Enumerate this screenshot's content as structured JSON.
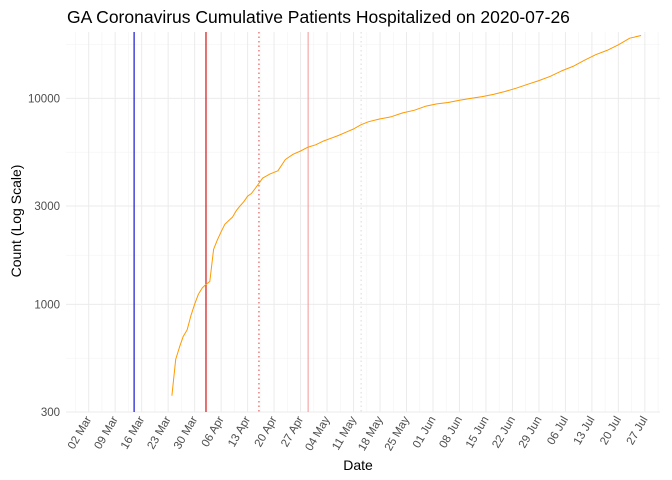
{
  "chart_data": {
    "type": "line",
    "title": "GA Coronavirus Cumulative Patients Hospitalized on 2020-07-26",
    "xlabel": "Date",
    "ylabel": "Count (Log Scale)",
    "y_scale": "log10",
    "ylim": [
      300,
      21000
    ],
    "xlim": [
      "2020-02-25",
      "2020-07-31"
    ],
    "grid": true,
    "y_ticks": [
      300,
      1000,
      3000,
      10000
    ],
    "y_tick_labels": [
      "300",
      "1000",
      "3000",
      "10000"
    ],
    "x_ticks": [
      "2020-03-02",
      "2020-03-09",
      "2020-03-16",
      "2020-03-23",
      "2020-03-30",
      "2020-04-06",
      "2020-04-13",
      "2020-04-20",
      "2020-04-27",
      "2020-05-04",
      "2020-05-11",
      "2020-05-18",
      "2020-05-25",
      "2020-06-01",
      "2020-06-08",
      "2020-06-15",
      "2020-06-22",
      "2020-06-29",
      "2020-07-06",
      "2020-07-13",
      "2020-07-20",
      "2020-07-27"
    ],
    "x_tick_labels": [
      "02 Mar",
      "09 Mar",
      "16 Mar",
      "23 Mar",
      "30 Mar",
      "06 Apr",
      "13 Apr",
      "20 Apr",
      "27 Apr",
      "04 May",
      "11 May",
      "18 May",
      "25 May",
      "01 Jun",
      "08 Jun",
      "15 Jun",
      "22 Jun",
      "29 Jun",
      "06 Jul",
      "13 Jul",
      "20 Jul",
      "27 Jul"
    ],
    "vlines": [
      {
        "x": "2020-03-14",
        "color": "#0000cc",
        "style": "solid"
      },
      {
        "x": "2020-04-02",
        "color": "#cc0000",
        "style": "solid"
      },
      {
        "x": "2020-04-16",
        "color": "#e05050",
        "style": "dotted"
      },
      {
        "x": "2020-04-29",
        "color": "#f4a0a0",
        "style": "solid"
      },
      {
        "x": "2020-05-13",
        "color": "#dddddd",
        "style": "dotted"
      }
    ],
    "series": [
      {
        "color": "#ff9900",
        "x": [
          "2020-03-24",
          "2020-03-25",
          "2020-03-26",
          "2020-03-27",
          "2020-03-28",
          "2020-03-29",
          "2020-03-30",
          "2020-03-31",
          "2020-04-01",
          "2020-04-02",
          "2020-04-03",
          "2020-04-04",
          "2020-04-05",
          "2020-04-06",
          "2020-04-07",
          "2020-04-08",
          "2020-04-09",
          "2020-04-10",
          "2020-04-11",
          "2020-04-12",
          "2020-04-13",
          "2020-04-14",
          "2020-04-15",
          "2020-04-17",
          "2020-04-19",
          "2020-04-21",
          "2020-04-23",
          "2020-04-25",
          "2020-04-27",
          "2020-04-29",
          "2020-05-01",
          "2020-05-03",
          "2020-05-05",
          "2020-05-07",
          "2020-05-09",
          "2020-05-11",
          "2020-05-13",
          "2020-05-15",
          "2020-05-18",
          "2020-05-21",
          "2020-05-24",
          "2020-05-27",
          "2020-05-30",
          "2020-06-02",
          "2020-06-05",
          "2020-06-08",
          "2020-06-11",
          "2020-06-14",
          "2020-06-17",
          "2020-06-20",
          "2020-06-23",
          "2020-06-26",
          "2020-06-29",
          "2020-07-02",
          "2020-07-05",
          "2020-07-08",
          "2020-07-11",
          "2020-07-14",
          "2020-07-17",
          "2020-07-20",
          "2020-07-23",
          "2020-07-26"
        ],
        "y": [
          360,
          540,
          620,
          700,
          750,
          880,
          1000,
          1120,
          1200,
          1250,
          1290,
          1850,
          2050,
          2250,
          2450,
          2550,
          2650,
          2850,
          3000,
          3150,
          3350,
          3450,
          3650,
          4100,
          4300,
          4450,
          5050,
          5350,
          5550,
          5800,
          5950,
          6200,
          6400,
          6600,
          6850,
          7100,
          7450,
          7700,
          7950,
          8150,
          8500,
          8750,
          9150,
          9400,
          9550,
          9800,
          10000,
          10200,
          10450,
          10800,
          11200,
          11700,
          12200,
          12800,
          13600,
          14300,
          15300,
          16300,
          17100,
          18200,
          19600,
          20200
        ]
      }
    ]
  }
}
